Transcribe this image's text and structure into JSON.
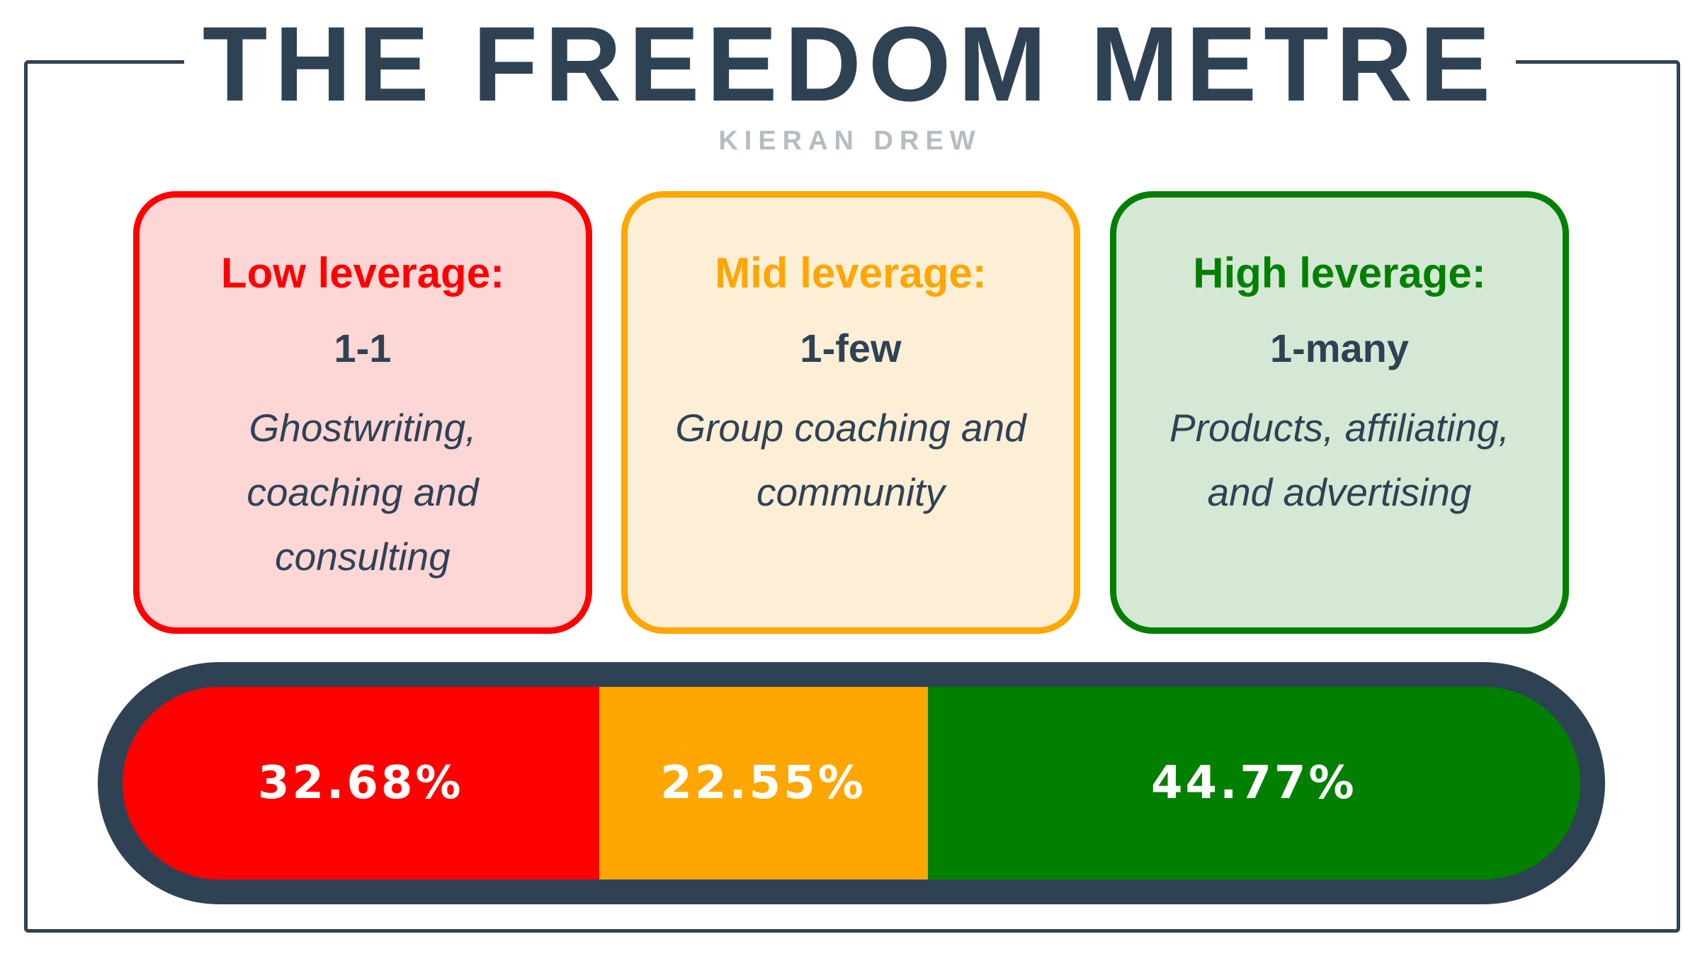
{
  "header": {
    "title": "THE FREEDOM METRE",
    "subtitle": "KIERAN DREW"
  },
  "cards": [
    {
      "heading": "Low leverage:",
      "ratio": "1-1",
      "description": "Ghostwriting, coaching and consulting",
      "color": "#ff0000",
      "background": "#fdd6d6"
    },
    {
      "heading": "Mid leverage:",
      "ratio": "1-few",
      "description": "Group coaching and community",
      "color": "#ffa600",
      "background": "#fdeed6"
    },
    {
      "heading": "High leverage:",
      "ratio": "1-many",
      "description": "Products, affiliating, and advertising",
      "color": "#018000",
      "background": "#d5e8d6"
    }
  ],
  "chart_data": {
    "type": "bar",
    "orientation": "horizontal-stacked",
    "categories": [
      "Low leverage",
      "Mid leverage",
      "High leverage"
    ],
    "values": [
      32.68,
      22.55,
      44.77
    ],
    "labels": [
      "32.68%",
      "22.55%",
      "44.77%"
    ],
    "colors": [
      "#ff0000",
      "#ffa600",
      "#018000"
    ],
    "unit": "%",
    "total": 100,
    "frame_color": "#2f4254"
  }
}
